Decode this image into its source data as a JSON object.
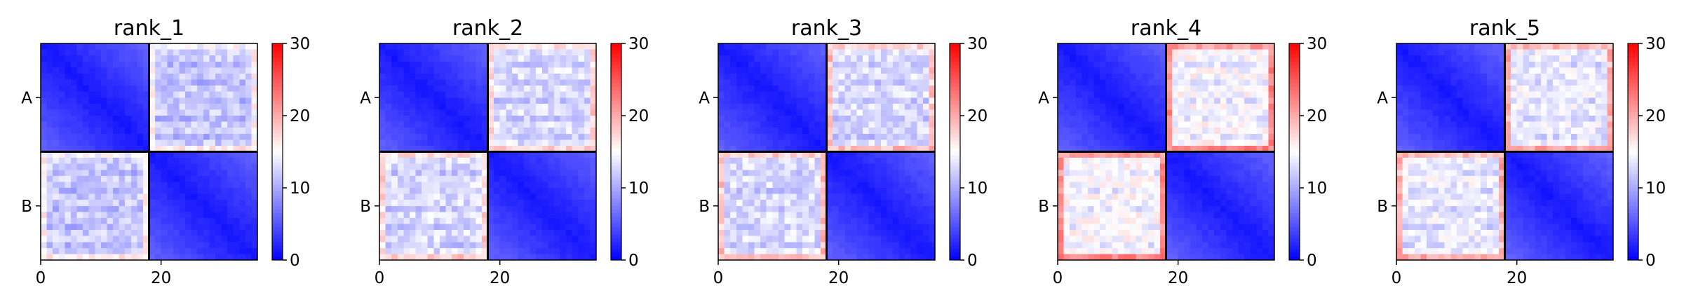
{
  "chart_data": [
    {
      "type": "heatmap",
      "title": "rank_1",
      "row_labels": [
        "A",
        "B"
      ],
      "xticks": [
        0,
        20
      ],
      "xlim": [
        0,
        36
      ],
      "colorbar_ticks": [
        0,
        10,
        20,
        30
      ],
      "vmin": 0,
      "vmax": 30,
      "cmap": "bwr",
      "block_boundary": 18,
      "offdiag_level": 12,
      "edge_boost": 4
    },
    {
      "type": "heatmap",
      "title": "rank_2",
      "row_labels": [
        "A",
        "B"
      ],
      "xticks": [
        0,
        20
      ],
      "xlim": [
        0,
        36
      ],
      "colorbar_ticks": [
        0,
        10,
        20,
        30
      ],
      "vmin": 0,
      "vmax": 30,
      "cmap": "bwr",
      "block_boundary": 18,
      "offdiag_level": 13,
      "edge_boost": 5
    },
    {
      "type": "heatmap",
      "title": "rank_3",
      "row_labels": [
        "A",
        "B"
      ],
      "xticks": [
        0,
        20
      ],
      "xlim": [
        0,
        36
      ],
      "colorbar_ticks": [
        0,
        10,
        20,
        30
      ],
      "vmin": 0,
      "vmax": 30,
      "cmap": "bwr",
      "block_boundary": 18,
      "offdiag_level": 13,
      "edge_boost": 6
    },
    {
      "type": "heatmap",
      "title": "rank_4",
      "row_labels": [
        "A",
        "B"
      ],
      "xticks": [
        0,
        20
      ],
      "xlim": [
        0,
        36
      ],
      "colorbar_ticks": [
        0,
        10,
        20,
        30
      ],
      "vmin": 0,
      "vmax": 30,
      "cmap": "bwr",
      "block_boundary": 18,
      "offdiag_level": 15,
      "edge_boost": 7
    },
    {
      "type": "heatmap",
      "title": "rank_5",
      "row_labels": [
        "A",
        "B"
      ],
      "xticks": [
        0,
        20
      ],
      "xlim": [
        0,
        36
      ],
      "colorbar_ticks": [
        0,
        10,
        20,
        30
      ],
      "vmin": 0,
      "vmax": 30,
      "cmap": "bwr",
      "block_boundary": 18,
      "offdiag_level": 14,
      "edge_boost": 6
    }
  ],
  "colors": {
    "low": "#0000ff",
    "mid": "#ffffff",
    "high": "#ff0000",
    "divider": "#000000"
  }
}
